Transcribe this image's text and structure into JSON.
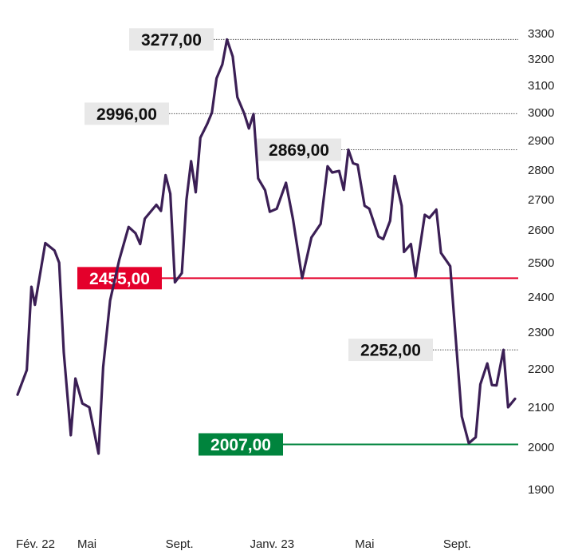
{
  "chart_data": {
    "type": "line",
    "title": "",
    "xlabel": "",
    "ylabel": "",
    "ylim": [
      1850,
      3350
    ],
    "y_ticks": [
      "3300",
      "3200",
      "3100",
      "3000",
      "2900",
      "2800",
      "2700",
      "2600",
      "2500",
      "2400",
      "2300",
      "2200",
      "2100",
      "2000",
      "1900"
    ],
    "x_ticks": [
      {
        "label": "Fév. 22",
        "x": 0
      },
      {
        "label": "Mai",
        "x": 3
      },
      {
        "label": "Sept.",
        "x": 7
      },
      {
        "label": "Janv. 23",
        "x": 11
      },
      {
        "label": "Mai",
        "x": 15
      },
      {
        "label": "Sept.",
        "x": 19
      }
    ],
    "grid": false,
    "series": [
      {
        "color": "#3b1f55",
        "points": [
          [
            0.0,
            2133
          ],
          [
            0.4,
            2197
          ],
          [
            0.6,
            2430
          ],
          [
            0.75,
            2378
          ],
          [
            1.2,
            2560
          ],
          [
            1.6,
            2537
          ],
          [
            1.8,
            2500
          ],
          [
            2.0,
            2245
          ],
          [
            2.3,
            2030
          ],
          [
            2.5,
            2175
          ],
          [
            2.8,
            2110
          ],
          [
            3.1,
            2100
          ],
          [
            3.5,
            1985
          ],
          [
            3.7,
            2205
          ],
          [
            4.0,
            2390
          ],
          [
            4.4,
            2510
          ],
          [
            4.8,
            2610
          ],
          [
            5.1,
            2590
          ],
          [
            5.3,
            2557
          ],
          [
            5.5,
            2637
          ],
          [
            6.0,
            2683
          ],
          [
            6.2,
            2663
          ],
          [
            6.4,
            2783
          ],
          [
            6.6,
            2720
          ],
          [
            6.8,
            2443
          ],
          [
            7.1,
            2470
          ],
          [
            7.3,
            2700
          ],
          [
            7.5,
            2830
          ],
          [
            7.7,
            2725
          ],
          [
            7.9,
            2910
          ],
          [
            8.2,
            2960
          ],
          [
            8.4,
            3000
          ],
          [
            8.6,
            3127
          ],
          [
            8.85,
            3180
          ],
          [
            9.05,
            3277
          ],
          [
            9.3,
            3210
          ],
          [
            9.5,
            3057
          ],
          [
            9.8,
            2996
          ],
          [
            10.0,
            2943
          ],
          [
            10.2,
            2995
          ],
          [
            10.4,
            2772
          ],
          [
            10.7,
            2732
          ],
          [
            10.9,
            2660
          ],
          [
            11.2,
            2670
          ],
          [
            11.6,
            2757
          ],
          [
            11.9,
            2637
          ],
          [
            12.3,
            2455
          ],
          [
            12.7,
            2577
          ],
          [
            13.1,
            2620
          ],
          [
            13.4,
            2813
          ],
          [
            13.6,
            2792
          ],
          [
            13.9,
            2797
          ],
          [
            14.1,
            2733
          ],
          [
            14.3,
            2869
          ],
          [
            14.5,
            2823
          ],
          [
            14.7,
            2818
          ],
          [
            15.0,
            2680
          ],
          [
            15.2,
            2670
          ],
          [
            15.6,
            2580
          ],
          [
            15.8,
            2572
          ],
          [
            16.1,
            2630
          ],
          [
            16.3,
            2780
          ],
          [
            16.6,
            2680
          ],
          [
            16.7,
            2533
          ],
          [
            17.0,
            2557
          ],
          [
            17.2,
            2460
          ],
          [
            17.6,
            2650
          ],
          [
            17.8,
            2640
          ],
          [
            18.1,
            2667
          ],
          [
            18.3,
            2530
          ],
          [
            18.7,
            2490
          ],
          [
            18.9,
            2315
          ],
          [
            19.2,
            2077
          ],
          [
            19.5,
            2010
          ],
          [
            19.8,
            2025
          ],
          [
            20.0,
            2160
          ],
          [
            20.3,
            2215
          ],
          [
            20.5,
            2158
          ],
          [
            20.7,
            2157
          ],
          [
            21.0,
            2252
          ],
          [
            21.2,
            2100
          ],
          [
            21.5,
            2122
          ]
        ]
      }
    ],
    "annotations": [
      {
        "label": "3277,00",
        "value": 3277,
        "style": "gray"
      },
      {
        "label": "2996,00",
        "value": 2996,
        "style": "gray"
      },
      {
        "label": "2869,00",
        "value": 2869,
        "style": "gray"
      },
      {
        "label": "2455,00",
        "value": 2455,
        "style": "red"
      },
      {
        "label": "2252,00",
        "value": 2252,
        "style": "gray"
      },
      {
        "label": "2007,00",
        "value": 2007,
        "style": "green"
      }
    ],
    "colors": {
      "line": "#3b1f55",
      "red": "#e4002b",
      "green": "#00843d",
      "gray_label_bg": "#e8e8e8",
      "dotted": "#555555"
    }
  }
}
